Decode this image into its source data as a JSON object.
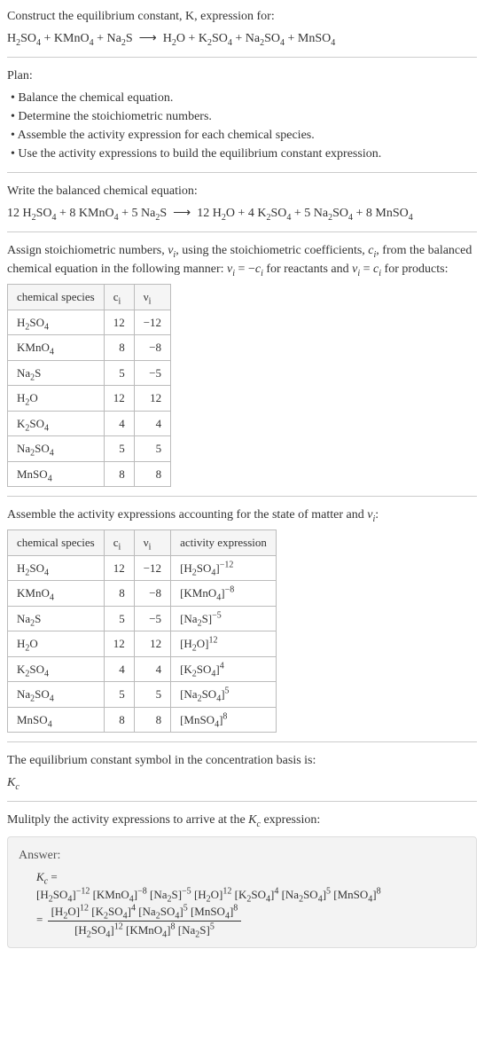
{
  "header": {
    "prompt": "Construct the equilibrium constant, K, expression for:",
    "equation_html": "H<sub>2</sub>SO<sub>4</sub> + KMnO<sub>4</sub> + Na<sub>2</sub>S &nbsp;⟶&nbsp; H<sub>2</sub>O + K<sub>2</sub>SO<sub>4</sub> + Na<sub>2</sub>SO<sub>4</sub> + MnSO<sub>4</sub>"
  },
  "plan": {
    "title": "Plan:",
    "items": [
      "Balance the chemical equation.",
      "Determine the stoichiometric numbers.",
      "Assemble the activity expression for each chemical species.",
      "Use the activity expressions to build the equilibrium constant expression."
    ]
  },
  "balanced": {
    "title": "Write the balanced chemical equation:",
    "equation_html": "12 H<sub>2</sub>SO<sub>4</sub> + 8 KMnO<sub>4</sub> + 5 Na<sub>2</sub>S &nbsp;⟶&nbsp; 12 H<sub>2</sub>O + 4 K<sub>2</sub>SO<sub>4</sub> + 5 Na<sub>2</sub>SO<sub>4</sub> + 8 MnSO<sub>4</sub>"
  },
  "stoich": {
    "intro_html": "Assign stoichiometric numbers, <i>ν<sub>i</sub></i>, using the stoichiometric coefficients, <i>c<sub>i</sub></i>, from the balanced chemical equation in the following manner: <i>ν<sub>i</sub></i> = −<i>c<sub>i</sub></i> for reactants and <i>ν<sub>i</sub></i> = <i>c<sub>i</sub></i> for products:",
    "headers": [
      "chemical species",
      "c<sub>i</sub>",
      "ν<sub>i</sub>"
    ],
    "rows": [
      {
        "species_html": "H<sub>2</sub>SO<sub>4</sub>",
        "c": "12",
        "v": "−12"
      },
      {
        "species_html": "KMnO<sub>4</sub>",
        "c": "8",
        "v": "−8"
      },
      {
        "species_html": "Na<sub>2</sub>S",
        "c": "5",
        "v": "−5"
      },
      {
        "species_html": "H<sub>2</sub>O",
        "c": "12",
        "v": "12"
      },
      {
        "species_html": "K<sub>2</sub>SO<sub>4</sub>",
        "c": "4",
        "v": "4"
      },
      {
        "species_html": "Na<sub>2</sub>SO<sub>4</sub>",
        "c": "5",
        "v": "5"
      },
      {
        "species_html": "MnSO<sub>4</sub>",
        "c": "8",
        "v": "8"
      }
    ]
  },
  "activity": {
    "intro_html": "Assemble the activity expressions accounting for the state of matter and <i>ν<sub>i</sub></i>:",
    "headers": [
      "chemical species",
      "c<sub>i</sub>",
      "ν<sub>i</sub>",
      "activity expression"
    ],
    "rows": [
      {
        "species_html": "H<sub>2</sub>SO<sub>4</sub>",
        "c": "12",
        "v": "−12",
        "expr_html": "[H<sub>2</sub>SO<sub>4</sub>]<sup>−12</sup>"
      },
      {
        "species_html": "KMnO<sub>4</sub>",
        "c": "8",
        "v": "−8",
        "expr_html": "[KMnO<sub>4</sub>]<sup>−8</sup>"
      },
      {
        "species_html": "Na<sub>2</sub>S",
        "c": "5",
        "v": "−5",
        "expr_html": "[Na<sub>2</sub>S]<sup>−5</sup>"
      },
      {
        "species_html": "H<sub>2</sub>O",
        "c": "12",
        "v": "12",
        "expr_html": "[H<sub>2</sub>O]<sup>12</sup>"
      },
      {
        "species_html": "K<sub>2</sub>SO<sub>4</sub>",
        "c": "4",
        "v": "4",
        "expr_html": "[K<sub>2</sub>SO<sub>4</sub>]<sup>4</sup>"
      },
      {
        "species_html": "Na<sub>2</sub>SO<sub>4</sub>",
        "c": "5",
        "v": "5",
        "expr_html": "[Na<sub>2</sub>SO<sub>4</sub>]<sup>5</sup>"
      },
      {
        "species_html": "MnSO<sub>4</sub>",
        "c": "8",
        "v": "8",
        "expr_html": "[MnSO<sub>4</sub>]<sup>8</sup>"
      }
    ]
  },
  "symbol": {
    "intro": "The equilibrium constant symbol in the concentration basis is:",
    "value_html": "<i>K<sub>c</sub></i>"
  },
  "multiply": {
    "intro_html": "Mulitply the activity expressions to arrive at the <i>K<sub>c</sub></i> expression:"
  },
  "answer": {
    "label": "Answer:",
    "line1_html": "<i>K<sub>c</sub></i> =",
    "line2_html": "[H<sub>2</sub>SO<sub>4</sub>]<sup>−12</sup> [KMnO<sub>4</sub>]<sup>−8</sup> [Na<sub>2</sub>S]<sup>−5</sup> [H<sub>2</sub>O]<sup>12</sup> [K<sub>2</sub>SO<sub>4</sub>]<sup>4</sup> [Na<sub>2</sub>SO<sub>4</sub>]<sup>5</sup> [MnSO<sub>4</sub>]<sup>8</sup>",
    "frac_num_html": "[H<sub>2</sub>O]<sup>12</sup> [K<sub>2</sub>SO<sub>4</sub>]<sup>4</sup> [Na<sub>2</sub>SO<sub>4</sub>]<sup>5</sup> [MnSO<sub>4</sub>]<sup>8</sup>",
    "frac_den_html": "[H<sub>2</sub>SO<sub>4</sub>]<sup>12</sup> [KMnO<sub>4</sub>]<sup>8</sup> [Na<sub>2</sub>S]<sup>5</sup>"
  },
  "style": {
    "text_color": "#333",
    "border_color": "#bbb",
    "answer_bg": "#f3f3f3"
  }
}
